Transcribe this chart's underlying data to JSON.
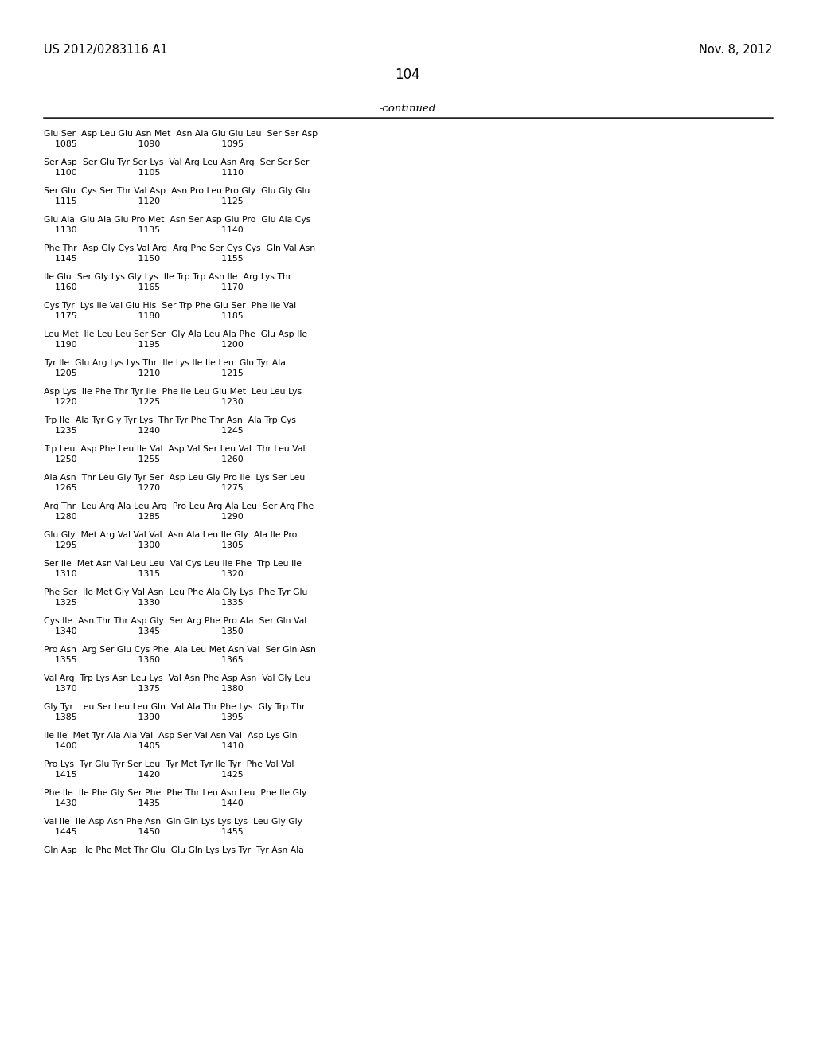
{
  "header_left": "US 2012/0283116 A1",
  "header_right": "Nov. 8, 2012",
  "page_number": "104",
  "continued_label": "-continued",
  "background_color": "#ffffff",
  "text_color": "#000000",
  "sequence_entries": [
    [
      "Glu Ser  Asp Leu Glu Asn Met  Asn Ala Glu Glu Leu  Ser Ser Asp",
      "    1085                      1090                      1095"
    ],
    [
      "Ser Asp  Ser Glu Tyr Ser Lys  Val Arg Leu Asn Arg  Ser Ser Ser",
      "    1100                      1105                      1110"
    ],
    [
      "Ser Glu  Cys Ser Thr Val Asp  Asn Pro Leu Pro Gly  Glu Gly Glu",
      "    1115                      1120                      1125"
    ],
    [
      "Glu Ala  Glu Ala Glu Pro Met  Asn Ser Asp Glu Pro  Glu Ala Cys",
      "    1130                      1135                      1140"
    ],
    [
      "Phe Thr  Asp Gly Cys Val Arg  Arg Phe Ser Cys Cys  Gln Val Asn",
      "    1145                      1150                      1155"
    ],
    [
      "Ile Glu  Ser Gly Lys Gly Lys  Ile Trp Trp Asn Ile  Arg Lys Thr",
      "    1160                      1165                      1170"
    ],
    [
      "Cys Tyr  Lys Ile Val Glu His  Ser Trp Phe Glu Ser  Phe Ile Val",
      "    1175                      1180                      1185"
    ],
    [
      "Leu Met  Ile Leu Leu Ser Ser  Gly Ala Leu Ala Phe  Glu Asp Ile",
      "    1190                      1195                      1200"
    ],
    [
      "Tyr Ile  Glu Arg Lys Lys Thr  Ile Lys Ile Ile Leu  Glu Tyr Ala",
      "    1205                      1210                      1215"
    ],
    [
      "Asp Lys  Ile Phe Thr Tyr Ile  Phe Ile Leu Glu Met  Leu Leu Lys",
      "    1220                      1225                      1230"
    ],
    [
      "Trp Ile  Ala Tyr Gly Tyr Lys  Thr Tyr Phe Thr Asn  Ala Trp Cys",
      "    1235                      1240                      1245"
    ],
    [
      "Trp Leu  Asp Phe Leu Ile Val  Asp Val Ser Leu Val  Thr Leu Val",
      "    1250                      1255                      1260"
    ],
    [
      "Ala Asn  Thr Leu Gly Tyr Ser  Asp Leu Gly Pro Ile  Lys Ser Leu",
      "    1265                      1270                      1275"
    ],
    [
      "Arg Thr  Leu Arg Ala Leu Arg  Pro Leu Arg Ala Leu  Ser Arg Phe",
      "    1280                      1285                      1290"
    ],
    [
      "Glu Gly  Met Arg Val Val Val  Asn Ala Leu Ile Gly  Ala Ile Pro",
      "    1295                      1300                      1305"
    ],
    [
      "Ser Ile  Met Asn Val Leu Leu  Val Cys Leu Ile Phe  Trp Leu Ile",
      "    1310                      1315                      1320"
    ],
    [
      "Phe Ser  Ile Met Gly Val Asn  Leu Phe Ala Gly Lys  Phe Tyr Glu",
      "    1325                      1330                      1335"
    ],
    [
      "Cys Ile  Asn Thr Thr Asp Gly  Ser Arg Phe Pro Ala  Ser Gln Val",
      "    1340                      1345                      1350"
    ],
    [
      "Pro Asn  Arg Ser Glu Cys Phe  Ala Leu Met Asn Val  Ser Gln Asn",
      "    1355                      1360                      1365"
    ],
    [
      "Val Arg  Trp Lys Asn Leu Lys  Val Asn Phe Asp Asn  Val Gly Leu",
      "    1370                      1375                      1380"
    ],
    [
      "Gly Tyr  Leu Ser Leu Leu Gln  Val Ala Thr Phe Lys  Gly Trp Thr",
      "    1385                      1390                      1395"
    ],
    [
      "Ile Ile  Met Tyr Ala Ala Val  Asp Ser Val Asn Val  Asp Lys Gln",
      "    1400                      1405                      1410"
    ],
    [
      "Pro Lys  Tyr Glu Tyr Ser Leu  Tyr Met Tyr Ile Tyr  Phe Val Val",
      "    1415                      1420                      1425"
    ],
    [
      "Phe Ile  Ile Phe Gly Ser Phe  Phe Thr Leu Asn Leu  Phe Ile Gly",
      "    1430                      1435                      1440"
    ],
    [
      "Val Ile  Ile Asp Asn Phe Asn  Gln Gln Lys Lys Lys  Leu Gly Gly",
      "    1445                      1450                      1455"
    ],
    [
      "Gln Asp  Ile Phe Met Thr Glu  Glu Gln Lys Lys Tyr  Tyr Asn Ala",
      ""
    ]
  ]
}
